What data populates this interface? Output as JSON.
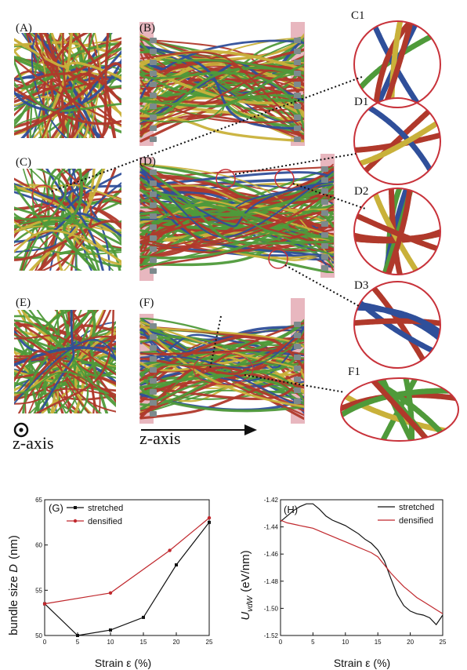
{
  "figure": {
    "panels": [
      {
        "id": "A",
        "label": "(A)"
      },
      {
        "id": "B",
        "label": "(B)"
      },
      {
        "id": "C",
        "label": "(C)"
      },
      {
        "id": "D",
        "label": "(D)"
      },
      {
        "id": "E",
        "label": "(E)"
      },
      {
        "id": "F",
        "label": "(F)"
      }
    ],
    "zooms": [
      {
        "id": "C1",
        "label": "C1"
      },
      {
        "id": "D1",
        "label": "D1"
      },
      {
        "id": "D2",
        "label": "D2"
      },
      {
        "id": "D3",
        "label": "D3"
      },
      {
        "id": "F1",
        "label": "F1"
      }
    ],
    "z_axis_out_label": "z-axis",
    "z_axis_arrow_label": "z-axis",
    "colors": {
      "fiber_red": "#b0392b",
      "fiber_green": "#4f9a3a",
      "fiber_blue": "#2f4f9a",
      "fiber_yellow": "#c9b13a",
      "clamp_pink": "#e8b7bf",
      "circle": "#c8323a"
    }
  },
  "chart_data": [
    {
      "type": "line",
      "panel_label": "(G)",
      "xlabel": "Strain  ε  (%)",
      "ylabel_prefix": "bundle size ",
      "ylabel_var": "D",
      "ylabel_unit": "(nm)",
      "xlim": [
        0,
        25
      ],
      "ylim": [
        50,
        65
      ],
      "xticks": [
        0,
        5,
        10,
        15,
        20,
        25
      ],
      "yticks": [
        50,
        55,
        60,
        65
      ],
      "legend_position": "top-left",
      "series": [
        {
          "name": "stretched",
          "color": "#111111",
          "marker": "square",
          "x": [
            0,
            5,
            10,
            15,
            20,
            25
          ],
          "y": [
            53.5,
            50.0,
            50.6,
            52.0,
            57.8,
            62.5
          ]
        },
        {
          "name": "densified",
          "color": "#c0282d",
          "marker": "circle",
          "x": [
            0,
            10,
            19,
            25
          ],
          "y": [
            53.5,
            54.7,
            59.4,
            63.0
          ]
        }
      ]
    },
    {
      "type": "line",
      "panel_label": "(H)",
      "xlabel": "Strain  ε  (%)",
      "ylabel_var": "U",
      "ylabel_sub": "vdW",
      "ylabel_unit": "(eV/nm)",
      "xlim": [
        0,
        25
      ],
      "ylim": [
        -1.52,
        -1.42
      ],
      "xticks": [
        0,
        5,
        10,
        15,
        20,
        25
      ],
      "yticks": [
        -1.42,
        -1.44,
        -1.46,
        -1.48,
        -1.5,
        -1.52
      ],
      "ytick_labels": [
        "-1.42",
        "-1.44",
        "-1.46",
        "-1.48",
        "-1.50",
        "-1.52"
      ],
      "legend_position": "top-right",
      "series": [
        {
          "name": "stretched",
          "color": "#111111",
          "x": [
            0,
            1,
            2,
            3,
            4,
            5,
            6,
            7,
            8,
            9,
            10,
            11,
            12,
            13,
            14,
            15,
            16,
            17,
            18,
            19,
            20,
            21,
            22,
            23,
            24,
            25
          ],
          "y": [
            -1.436,
            -1.432,
            -1.428,
            -1.425,
            -1.423,
            -1.423,
            -1.427,
            -1.432,
            -1.435,
            -1.437,
            -1.439,
            -1.442,
            -1.445,
            -1.449,
            -1.452,
            -1.457,
            -1.465,
            -1.478,
            -1.49,
            -1.498,
            -1.502,
            -1.504,
            -1.505,
            -1.507,
            -1.512,
            -1.505
          ]
        },
        {
          "name": "densified",
          "color": "#c0282d",
          "x": [
            0,
            1,
            2,
            3,
            4,
            5,
            6,
            7,
            8,
            9,
            10,
            11,
            12,
            13,
            14,
            15,
            16,
            17,
            18,
            19,
            20,
            21,
            22,
            23,
            24,
            25
          ],
          "y": [
            -1.435,
            -1.437,
            -1.438,
            -1.439,
            -1.44,
            -1.441,
            -1.443,
            -1.445,
            -1.447,
            -1.449,
            -1.451,
            -1.453,
            -1.455,
            -1.457,
            -1.459,
            -1.462,
            -1.468,
            -1.474,
            -1.479,
            -1.484,
            -1.488,
            -1.492,
            -1.495,
            -1.498,
            -1.501,
            -1.504
          ]
        }
      ]
    }
  ]
}
